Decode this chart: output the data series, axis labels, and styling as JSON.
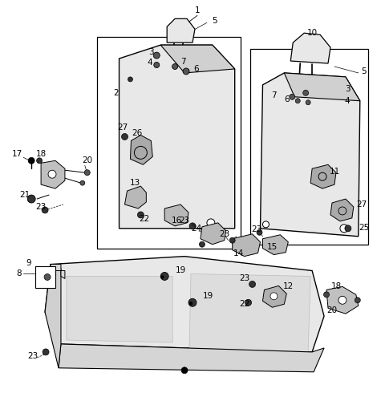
{
  "bg_color": "#ffffff",
  "fig_width": 4.8,
  "fig_height": 5.05,
  "dpi": 100,
  "line_color": "#000000",
  "seat_fill": "#e8e8e8",
  "detail_line": "#bbbbbb"
}
